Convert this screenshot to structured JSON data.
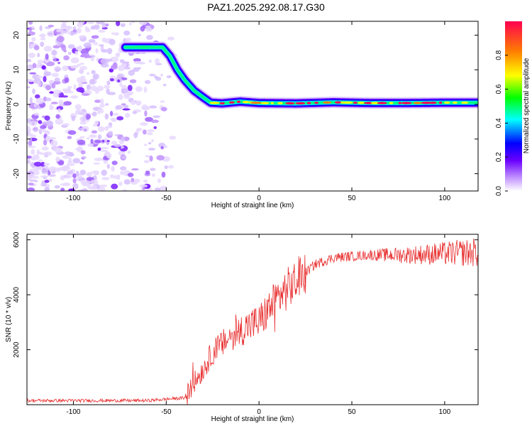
{
  "title": "PAZ1.2025.292.08.17.G30",
  "chart_data": [
    {
      "type": "heatmap",
      "xlabel": "Height of straight line (km)",
      "ylabel": "Frequency (Hz)",
      "xlim": [
        -125,
        118
      ],
      "ylim": [
        -25,
        24
      ],
      "xticks": [
        -100,
        -50,
        0,
        50,
        100
      ],
      "xtick_labels": [
        "-100",
        "-50",
        "0",
        "50",
        "100"
      ],
      "yticks": [
        -20,
        -10,
        0,
        10,
        20
      ],
      "ytick_labels": [
        "-20",
        "-10",
        "0",
        "10",
        "20"
      ],
      "ridge": {
        "x": [
          -72,
          -60,
          -52,
          -48,
          -44,
          -40,
          -35,
          -30,
          -26,
          -20,
          -10,
          0,
          20,
          40,
          60,
          80,
          100,
          118
        ],
        "y": [
          16.5,
          16.5,
          16.5,
          14,
          10,
          7,
          4,
          2,
          0.5,
          0.3,
          0.8,
          0.4,
          0.3,
          0.6,
          0.4,
          0.4,
          0.5,
          0.5
        ]
      },
      "noise_region_x": [
        -125,
        -45
      ],
      "colorbar": {
        "label": "Normalized spectral amplitude",
        "range": [
          0,
          1
        ],
        "ticks": [
          0.0,
          0.2,
          0.4,
          0.6,
          0.8
        ],
        "tick_labels": [
          "0.0",
          "0.2",
          "0.4",
          "0.6",
          "0.8"
        ],
        "colors": [
          "#ffffff",
          "#c090ff",
          "#6a00ff",
          "#0000ff",
          "#00ffff",
          "#00ff00",
          "#ffff00",
          "#ff8000",
          "#ff0050"
        ]
      }
    },
    {
      "type": "line",
      "xlabel": "Height of straight line (km)",
      "ylabel": "SNR (10 * v/v)",
      "xlim": [
        -125,
        118
      ],
      "ylim": [
        0,
        6200
      ],
      "xticks": [
        -100,
        -50,
        0,
        50,
        100
      ],
      "xtick_labels": [
        "-100",
        "-50",
        "0",
        "50",
        "100"
      ],
      "yticks": [
        2000,
        4000,
        6000
      ],
      "ytick_labels": [
        "2000",
        "4000",
        "6000"
      ],
      "line_color": "#e83030",
      "series_trend": {
        "x": [
          -125,
          -60,
          -40,
          -36,
          -30,
          -25,
          -20,
          -15,
          -10,
          -5,
          0,
          10,
          20,
          30,
          40,
          60,
          80,
          100,
          118
        ],
        "y": [
          150,
          150,
          250,
          700,
          1300,
          1900,
          2200,
          2500,
          2700,
          2900,
          3000,
          3900,
          4500,
          5100,
          5350,
          5450,
          5450,
          5500,
          5550
        ]
      }
    }
  ]
}
